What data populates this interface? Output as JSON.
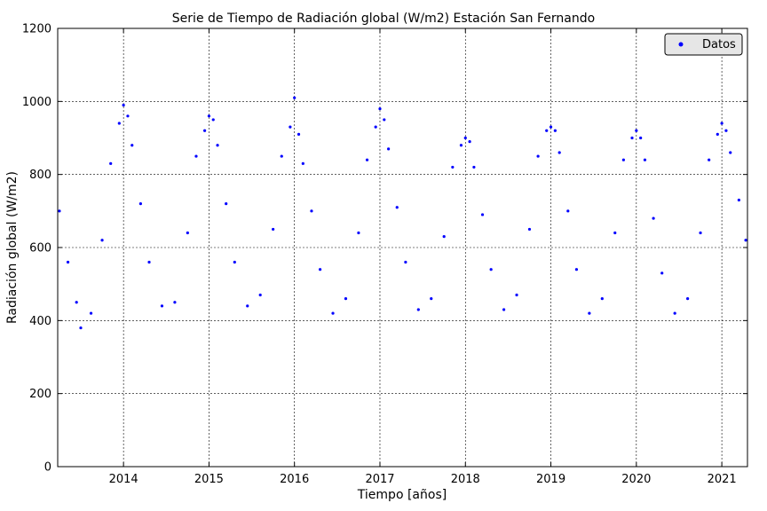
{
  "chart_data": {
    "type": "scatter",
    "title": "Serie de Tiempo de Radiación global (W/m2) Estación San Fernando",
    "xlabel": "Tiempo [años]",
    "ylabel": "Radiación global (W/m2)",
    "xlim": [
      2013.23,
      2021.3
    ],
    "ylim": [
      0,
      1200
    ],
    "x_ticks": [
      2014,
      2015,
      2016,
      2017,
      2018,
      2019,
      2020,
      2021
    ],
    "x_tick_labels": [
      "2014",
      "2015",
      "2016",
      "2017",
      "2018",
      "2019",
      "2020",
      "2021"
    ],
    "y_ticks": [
      0,
      200,
      400,
      600,
      800,
      1000,
      1200
    ],
    "y_tick_labels": [
      "0",
      "200",
      "400",
      "600",
      "800",
      "1000",
      "1200"
    ],
    "grid": true,
    "legend": {
      "position": "top-right",
      "entries": [
        "Datos"
      ]
    },
    "series": [
      {
        "name": "Datos",
        "color": "#0000ff",
        "marker": "dot",
        "x": [
          2013.25,
          2013.35,
          2013.45,
          2013.5,
          2013.62,
          2013.75,
          2013.85,
          2013.95,
          2014.0,
          2014.05,
          2014.1,
          2014.2,
          2014.3,
          2014.45,
          2014.6,
          2014.75,
          2014.85,
          2014.95,
          2015.0,
          2015.05,
          2015.1,
          2015.2,
          2015.3,
          2015.45,
          2015.6,
          2015.75,
          2015.85,
          2015.95,
          2016.0,
          2016.05,
          2016.1,
          2016.2,
          2016.3,
          2016.45,
          2016.6,
          2016.75,
          2016.85,
          2016.95,
          2017.0,
          2017.05,
          2017.1,
          2017.2,
          2017.3,
          2017.45,
          2017.6,
          2017.75,
          2017.85,
          2017.95,
          2018.0,
          2018.05,
          2018.1,
          2018.2,
          2018.3,
          2018.45,
          2018.6,
          2018.75,
          2018.85,
          2018.95,
          2019.0,
          2019.05,
          2019.1,
          2019.2,
          2019.3,
          2019.45,
          2019.6,
          2019.75,
          2019.85,
          2019.95,
          2020.0,
          2020.05,
          2020.1,
          2020.2,
          2020.3,
          2020.45,
          2020.6,
          2020.75,
          2020.85,
          2020.95,
          2021.0,
          2021.05,
          2021.1,
          2021.2,
          2021.28
        ],
        "y": [
          700,
          560,
          450,
          380,
          420,
          620,
          830,
          940,
          990,
          960,
          880,
          720,
          560,
          440,
          450,
          640,
          850,
          920,
          960,
          950,
          880,
          720,
          560,
          440,
          470,
          650,
          850,
          930,
          1010,
          910,
          830,
          700,
          540,
          420,
          460,
          640,
          840,
          930,
          980,
          950,
          870,
          710,
          560,
          430,
          460,
          630,
          820,
          880,
          900,
          890,
          820,
          690,
          540,
          430,
          470,
          650,
          850,
          920,
          930,
          920,
          860,
          700,
          540,
          420,
          460,
          640,
          840,
          900,
          920,
          900,
          840,
          680,
          530,
          420,
          460,
          640,
          840,
          910,
          940,
          920,
          860,
          730,
          620
        ]
      }
    ]
  }
}
